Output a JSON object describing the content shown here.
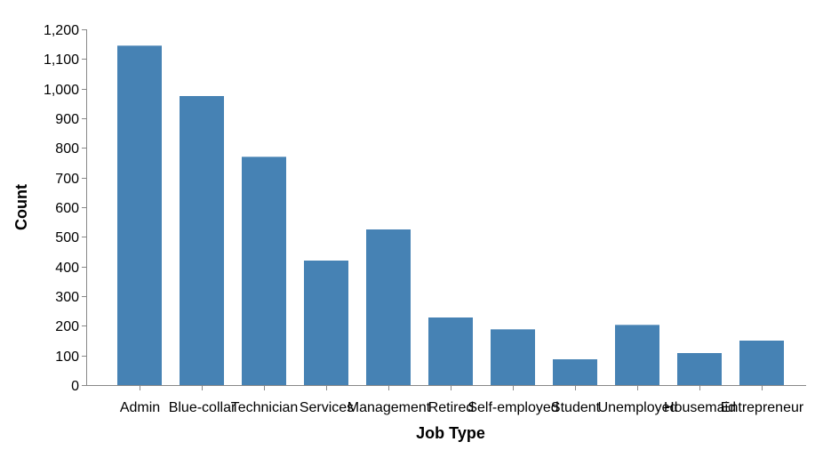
{
  "chart_data": {
    "type": "bar",
    "title": "",
    "xlabel": "Job Type",
    "ylabel": "Count",
    "ylim": [
      0,
      1200
    ],
    "yticks": [
      0,
      100,
      200,
      300,
      400,
      500,
      600,
      700,
      800,
      900,
      1000,
      1100,
      1200
    ],
    "ytick_labels": [
      "0",
      "100",
      "200",
      "300",
      "400",
      "500",
      "600",
      "700",
      "800",
      "900",
      "1,000",
      "1,100",
      "1,200"
    ],
    "categories": [
      "Admin",
      "Blue-collar",
      "Technician",
      "Services",
      "Management",
      "Retired",
      "Self-employed",
      "Student",
      "Unemployed",
      "Housemaid",
      "Entrepreneur"
    ],
    "values": [
      1145,
      975,
      770,
      420,
      525,
      228,
      188,
      87,
      203,
      108,
      150
    ],
    "grid": false,
    "bar_color": "#4682b4",
    "axis_color": "#888888"
  }
}
